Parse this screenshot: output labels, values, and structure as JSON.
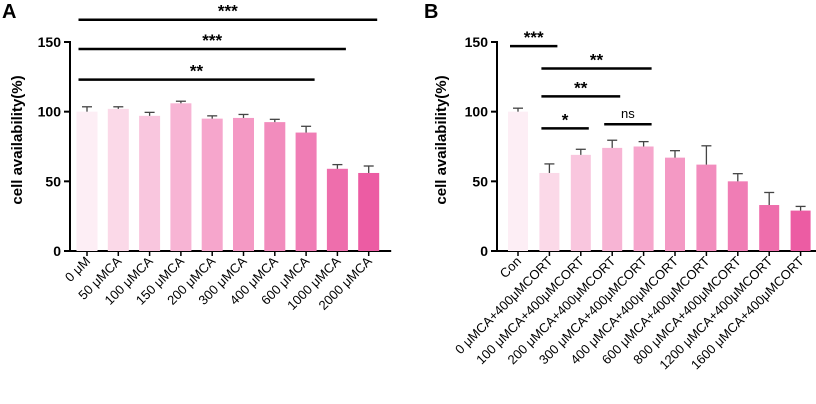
{
  "chart_data": [
    {
      "panel": "A",
      "type": "bar",
      "ylabel": "cell availability(%)",
      "ylim": [
        0,
        150
      ],
      "yticks": [
        "0",
        "50",
        "100",
        "150"
      ],
      "categories": [
        "0 μM",
        "50 μMCA",
        "100 μMCA",
        "150 μMCA",
        "200 μMCA",
        "300 μMCA",
        "400 μMCA",
        "600 μMCA",
        "1000 μMCA",
        "2000 μMCA"
      ],
      "values": [
        100,
        102,
        97,
        106,
        95,
        95.5,
        92.5,
        85,
        59,
        56
      ],
      "errors": [
        3.5,
        1.5,
        2.5,
        1.5,
        2,
        2.5,
        2,
        4.5,
        3,
        5
      ],
      "colors": [
        "#fdeef5",
        "#fbd9e8",
        "#f9c6de",
        "#f7b4d4",
        "#f6a6cc",
        "#f499c4",
        "#f28cbd",
        "#f07db5",
        "#ee6eac",
        "#ec5ca3"
      ],
      "annotations": [
        {
          "from": 0,
          "to": 9,
          "label": "***",
          "y": 166
        },
        {
          "from": 0,
          "to": 8,
          "label": "***",
          "y": 145
        },
        {
          "from": 0,
          "to": 7,
          "label": "**",
          "y": 123
        }
      ]
    },
    {
      "panel": "B",
      "type": "bar",
      "ylabel": "cell availability(%)",
      "ylim": [
        0,
        150
      ],
      "yticks": [
        "0",
        "50",
        "100",
        "150"
      ],
      "categories": [
        "Con",
        "0 μMCA+400μMCORT",
        "100 μMCA+400μMCORT",
        "200 μMCA+400μMCORT",
        "300 μMCA+400μMCORT",
        "400 μMCA+400μMCORT",
        "600 μMCA+400μMCORT",
        "800 μMCA+400μMCORT",
        "1200 μMCA+400μMCORT",
        "1600 μMCA+400μMCORT"
      ],
      "values": [
        100,
        56,
        69,
        74,
        75,
        67,
        62,
        50,
        33,
        29
      ],
      "errors": [
        2.5,
        6.5,
        4,
        5.5,
        3.5,
        5,
        13.5,
        5.5,
        9,
        3
      ],
      "colors": [
        "#fdeef5",
        "#fbd9e8",
        "#f9c6de",
        "#f7b4d4",
        "#f6a6cc",
        "#f499c4",
        "#f28cbd",
        "#f07db5",
        "#ee6eac",
        "#ec5ca3"
      ],
      "annotations": [
        {
          "from": 0,
          "to": 1,
          "label": "***",
          "y": 147
        },
        {
          "from": 1,
          "to": 4,
          "label": "**",
          "y": 131
        },
        {
          "from": 1,
          "to": 3,
          "label": "**",
          "y": 111
        },
        {
          "from": 1,
          "to": 2,
          "label": "*",
          "y": 88
        },
        {
          "from": 3,
          "to": 4,
          "label": "ns",
          "y": 91
        }
      ]
    }
  ]
}
